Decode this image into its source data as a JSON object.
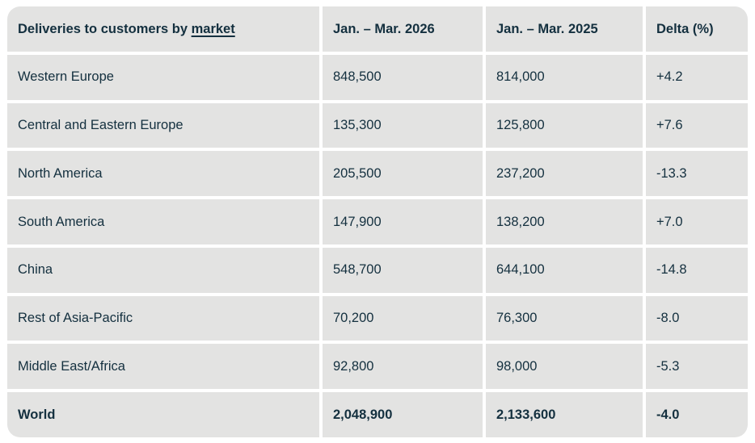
{
  "colors": {
    "cell_background": "#e3e3e2",
    "text": "#14303f",
    "page_background": "#ffffff"
  },
  "table": {
    "header": {
      "market_prefix": "Deliveries to customers by ",
      "market_link": "market",
      "col_2026": "Jan. – Mar. 2026",
      "col_2025": "Jan. – Mar. 2025",
      "col_delta": "Delta (%)"
    },
    "rows": [
      {
        "market": "Western Europe",
        "q_2026": "848,500",
        "q_2025": "814,000",
        "delta": "+4.2"
      },
      {
        "market": "Central and Eastern Europe",
        "q_2026": "135,300",
        "q_2025": "125,800",
        "delta": "+7.6"
      },
      {
        "market": "North America",
        "q_2026": "205,500",
        "q_2025": "237,200",
        "delta": "-13.3"
      },
      {
        "market": "South America",
        "q_2026": "147,900",
        "q_2025": "138,200",
        "delta": "+7.0"
      },
      {
        "market": "China",
        "q_2026": "548,700",
        "q_2025": "644,100",
        "delta": "-14.8"
      },
      {
        "market": "Rest of Asia-Pacific",
        "q_2026": "70,200",
        "q_2025": "76,300",
        "delta": "-8.0"
      },
      {
        "market": "Middle East/Africa",
        "q_2026": "92,800",
        "q_2025": "98,000",
        "delta": "-5.3"
      },
      {
        "market": "World",
        "q_2026": "2,048,900",
        "q_2025": "2,133,600",
        "delta": "-4.0"
      }
    ]
  },
  "chart_data": {
    "type": "table",
    "title": "Deliveries to customers by market",
    "columns": [
      "Deliveries to customers by market",
      "Jan. – Mar. 2026",
      "Jan. – Mar. 2025",
      "Delta (%)"
    ],
    "rows": [
      [
        "Western Europe",
        848500,
        814000,
        4.2
      ],
      [
        "Central and Eastern Europe",
        135300,
        125800,
        7.6
      ],
      [
        "North America",
        205500,
        237200,
        -13.3
      ],
      [
        "South America",
        147900,
        138200,
        7.0
      ],
      [
        "China",
        548700,
        644100,
        -14.8
      ],
      [
        "Rest of Asia-Pacific",
        70200,
        76300,
        -8.0
      ],
      [
        "Middle East/Africa",
        92800,
        98000,
        -5.3
      ],
      [
        "World",
        2048900,
        2133600,
        -4.0
      ]
    ]
  }
}
